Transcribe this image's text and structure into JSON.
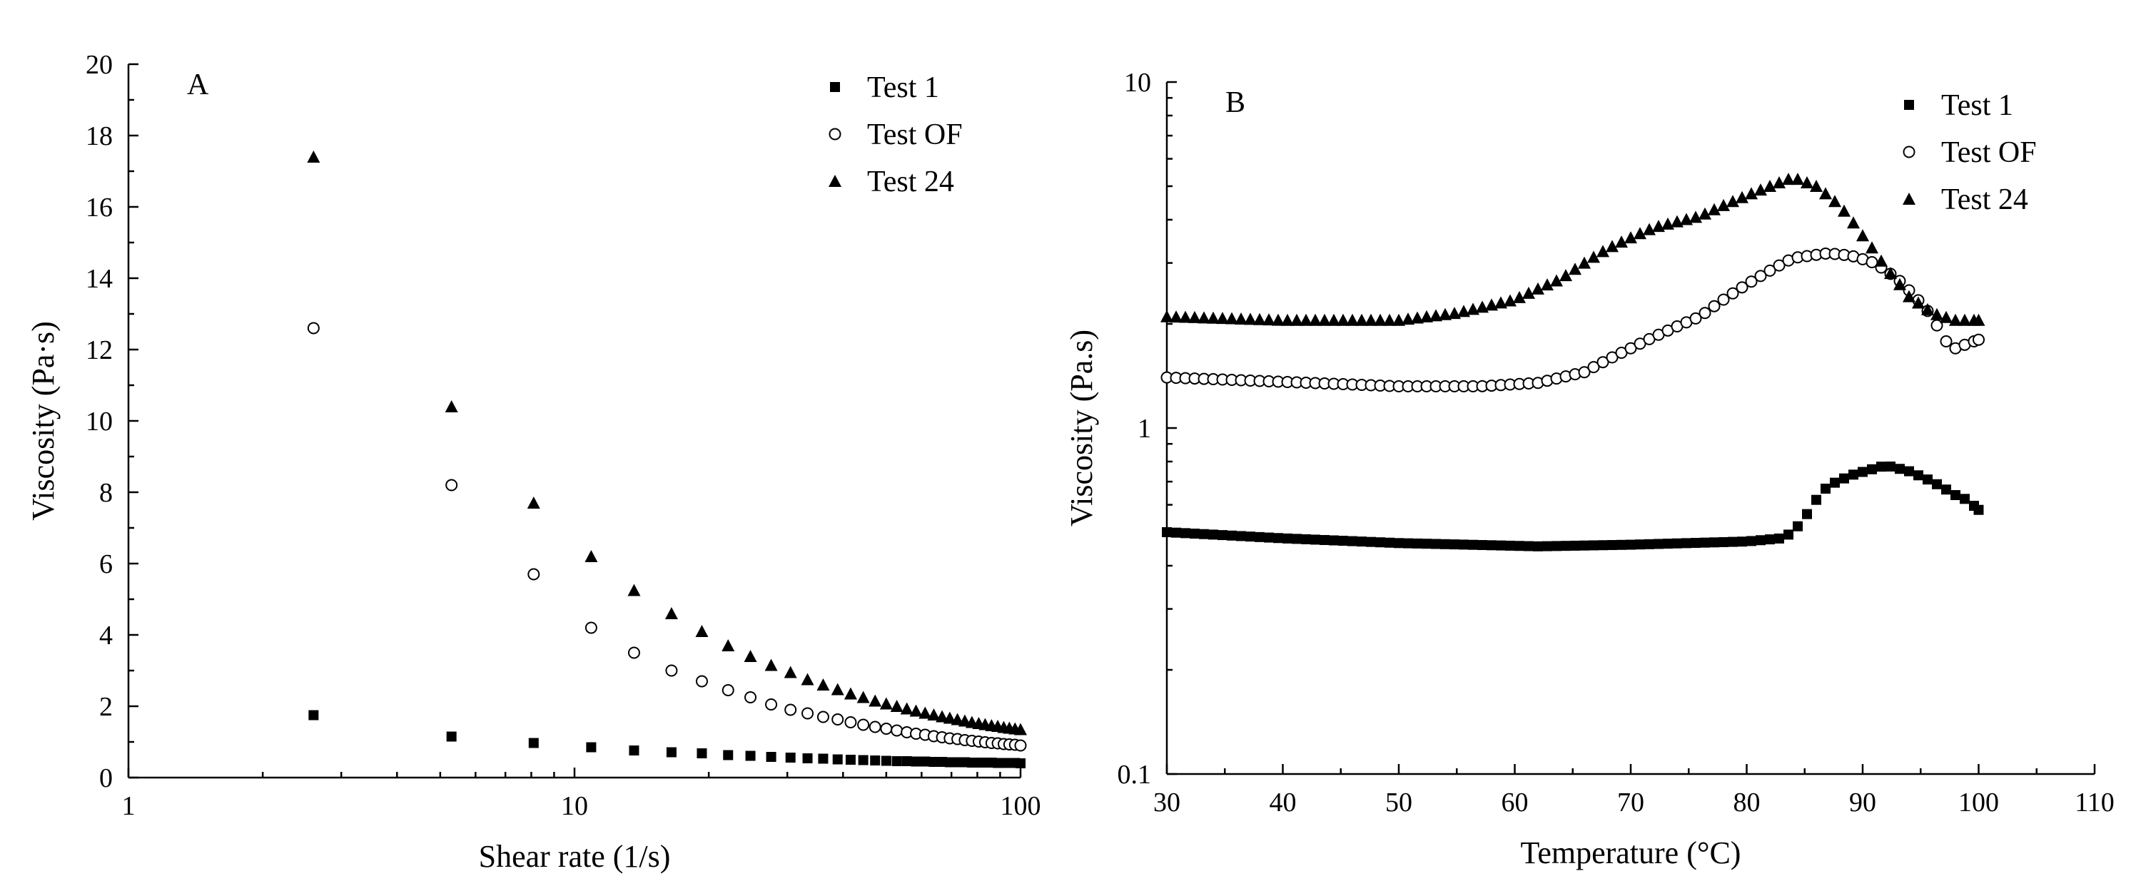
{
  "chart_data": [
    {
      "type": "scatter",
      "panel_label": "A",
      "xlabel": "Shear rate (1/s)",
      "ylabel": "Viscosity (Pa·s)",
      "xscale": "log",
      "yscale": "linear",
      "xlim": [
        1,
        100
      ],
      "ylim": [
        0,
        20
      ],
      "x_ticks": [
        1,
        10,
        100
      ],
      "x_tick_labels": [
        "1",
        "10",
        "100"
      ],
      "y_ticks": [
        0,
        2,
        4,
        6,
        8,
        10,
        12,
        14,
        16,
        18,
        20
      ],
      "y_tick_labels": [
        "0",
        "2",
        "4",
        "6",
        "8",
        "10",
        "12",
        "14",
        "16",
        "18",
        "20"
      ],
      "legend_position": "top-right",
      "series": [
        {
          "name": "Test 1",
          "marker": "square",
          "points": [
            [
              2.6,
              1.75
            ],
            [
              5.3,
              1.15
            ],
            [
              8.1,
              0.97
            ],
            [
              10.9,
              0.85
            ],
            [
              13.6,
              0.76
            ],
            [
              16.5,
              0.71
            ],
            [
              19.3,
              0.68
            ],
            [
              22.1,
              0.63
            ],
            [
              24.8,
              0.61
            ],
            [
              27.6,
              0.58
            ],
            [
              30.5,
              0.56
            ],
            [
              33.3,
              0.54
            ],
            [
              36.1,
              0.53
            ],
            [
              38.9,
              0.51
            ],
            [
              41.6,
              0.5
            ],
            [
              44.4,
              0.49
            ],
            [
              47.2,
              0.48
            ],
            [
              50.0,
              0.47
            ],
            [
              52.8,
              0.46
            ],
            [
              55.6,
              0.46
            ],
            [
              58.3,
              0.45
            ],
            [
              61.1,
              0.45
            ],
            [
              63.9,
              0.44
            ],
            [
              66.7,
              0.44
            ],
            [
              69.4,
              0.43
            ],
            [
              72.2,
              0.43
            ],
            [
              75.0,
              0.43
            ],
            [
              77.8,
              0.42
            ],
            [
              80.6,
              0.42
            ],
            [
              83.3,
              0.42
            ],
            [
              86.1,
              0.42
            ],
            [
              88.9,
              0.41
            ],
            [
              91.7,
              0.41
            ],
            [
              94.4,
              0.41
            ],
            [
              97.2,
              0.41
            ],
            [
              100.0,
              0.4
            ]
          ]
        },
        {
          "name": "Test OF",
          "marker": "circle-open",
          "points": [
            [
              2.6,
              12.6
            ],
            [
              5.3,
              8.2
            ],
            [
              8.1,
              5.7
            ],
            [
              10.9,
              4.2
            ],
            [
              13.6,
              3.5
            ],
            [
              16.5,
              3.0
            ],
            [
              19.3,
              2.7
            ],
            [
              22.1,
              2.45
            ],
            [
              24.8,
              2.25
            ],
            [
              27.6,
              2.05
            ],
            [
              30.5,
              1.9
            ],
            [
              33.3,
              1.8
            ],
            [
              36.1,
              1.7
            ],
            [
              38.9,
              1.63
            ],
            [
              41.6,
              1.55
            ],
            [
              44.4,
              1.48
            ],
            [
              47.2,
              1.42
            ],
            [
              50.0,
              1.37
            ],
            [
              52.8,
              1.32
            ],
            [
              55.6,
              1.27
            ],
            [
              58.3,
              1.23
            ],
            [
              61.1,
              1.2
            ],
            [
              63.9,
              1.16
            ],
            [
              66.7,
              1.13
            ],
            [
              69.4,
              1.1
            ],
            [
              72.2,
              1.08
            ],
            [
              75.0,
              1.05
            ],
            [
              77.8,
              1.03
            ],
            [
              80.6,
              1.01
            ],
            [
              83.3,
              0.99
            ],
            [
              86.1,
              0.97
            ],
            [
              88.9,
              0.96
            ],
            [
              91.7,
              0.94
            ],
            [
              94.4,
              0.93
            ],
            [
              97.2,
              0.92
            ],
            [
              100.0,
              0.9
            ]
          ]
        },
        {
          "name": "Test 24",
          "marker": "triangle",
          "points": [
            [
              2.6,
              17.4
            ],
            [
              5.3,
              10.4
            ],
            [
              8.1,
              7.7
            ],
            [
              10.9,
              6.2
            ],
            [
              13.6,
              5.25
            ],
            [
              16.5,
              4.6
            ],
            [
              19.3,
              4.1
            ],
            [
              22.1,
              3.7
            ],
            [
              24.8,
              3.4
            ],
            [
              27.6,
              3.15
            ],
            [
              30.5,
              2.95
            ],
            [
              33.3,
              2.75
            ],
            [
              36.1,
              2.6
            ],
            [
              38.9,
              2.47
            ],
            [
              41.6,
              2.35
            ],
            [
              44.4,
              2.25
            ],
            [
              47.2,
              2.15
            ],
            [
              50.0,
              2.07
            ],
            [
              52.8,
              2.0
            ],
            [
              55.6,
              1.93
            ],
            [
              58.3,
              1.87
            ],
            [
              61.1,
              1.81
            ],
            [
              63.9,
              1.76
            ],
            [
              66.7,
              1.71
            ],
            [
              69.4,
              1.67
            ],
            [
              72.2,
              1.63
            ],
            [
              75.0,
              1.59
            ],
            [
              77.8,
              1.55
            ],
            [
              80.6,
              1.52
            ],
            [
              83.3,
              1.49
            ],
            [
              86.1,
              1.46
            ],
            [
              88.9,
              1.44
            ],
            [
              91.7,
              1.41
            ],
            [
              94.4,
              1.39
            ],
            [
              97.2,
              1.37
            ],
            [
              100.0,
              1.35
            ]
          ]
        }
      ]
    },
    {
      "type": "scatter",
      "panel_label": "B",
      "xlabel": "Temperature (°C)",
      "ylabel": "Viscosity (Pa.s)",
      "xscale": "linear",
      "yscale": "log",
      "xlim": [
        30,
        110
      ],
      "ylim": [
        0.1,
        10
      ],
      "x_ticks": [
        30,
        40,
        50,
        60,
        70,
        80,
        90,
        100,
        110
      ],
      "x_tick_labels": [
        "30",
        "40",
        "50",
        "60",
        "70",
        "80",
        "90",
        "100",
        "110"
      ],
      "y_ticks": [
        0.1,
        1,
        10
      ],
      "y_tick_labels": [
        "0.1",
        "1",
        "10"
      ],
      "legend_position": "top-right",
      "series": [
        {
          "name": "Test 1",
          "marker": "square",
          "anchors": [
            [
              30,
              0.5
            ],
            [
              40,
              0.48
            ],
            [
              50,
              0.465
            ],
            [
              62,
              0.455
            ],
            [
              70,
              0.46
            ],
            [
              80,
              0.47
            ],
            [
              83,
              0.48
            ],
            [
              84,
              0.5
            ],
            [
              85,
              0.55
            ],
            [
              86,
              0.62
            ],
            [
              87,
              0.68
            ],
            [
              89,
              0.73
            ],
            [
              92,
              0.78
            ],
            [
              94,
              0.75
            ],
            [
              96,
              0.7
            ],
            [
              98,
              0.64
            ],
            [
              99,
              0.62
            ],
            [
              100,
              0.58
            ]
          ]
        },
        {
          "name": "Test OF",
          "marker": "circle-open",
          "anchors": [
            [
              30,
              1.4
            ],
            [
              40,
              1.36
            ],
            [
              50,
              1.32
            ],
            [
              57,
              1.32
            ],
            [
              62,
              1.35
            ],
            [
              66,
              1.45
            ],
            [
              70,
              1.7
            ],
            [
              73,
              1.9
            ],
            [
              76,
              2.1
            ],
            [
              80,
              2.6
            ],
            [
              84,
              3.1
            ],
            [
              87,
              3.2
            ],
            [
              89,
              3.15
            ],
            [
              91,
              3.0
            ],
            [
              93,
              2.7
            ],
            [
              95,
              2.3
            ],
            [
              96,
              2.1
            ],
            [
              97,
              1.8
            ],
            [
              98,
              1.7
            ],
            [
              99,
              1.75
            ],
            [
              100,
              1.8
            ]
          ]
        },
        {
          "name": "Test 24",
          "marker": "triangle",
          "anchors": [
            [
              30,
              2.1
            ],
            [
              40,
              2.05
            ],
            [
              50,
              2.05
            ],
            [
              55,
              2.15
            ],
            [
              60,
              2.35
            ],
            [
              64,
              2.7
            ],
            [
              68,
              3.3
            ],
            [
              72,
              3.8
            ],
            [
              76,
              4.1
            ],
            [
              80,
              4.7
            ],
            [
              84,
              5.3
            ],
            [
              86,
              5.0
            ],
            [
              88,
              4.4
            ],
            [
              90,
              3.6
            ],
            [
              92,
              2.9
            ],
            [
              94,
              2.4
            ],
            [
              96,
              2.15
            ],
            [
              98,
              2.05
            ],
            [
              100,
              2.05
            ]
          ]
        }
      ]
    }
  ]
}
